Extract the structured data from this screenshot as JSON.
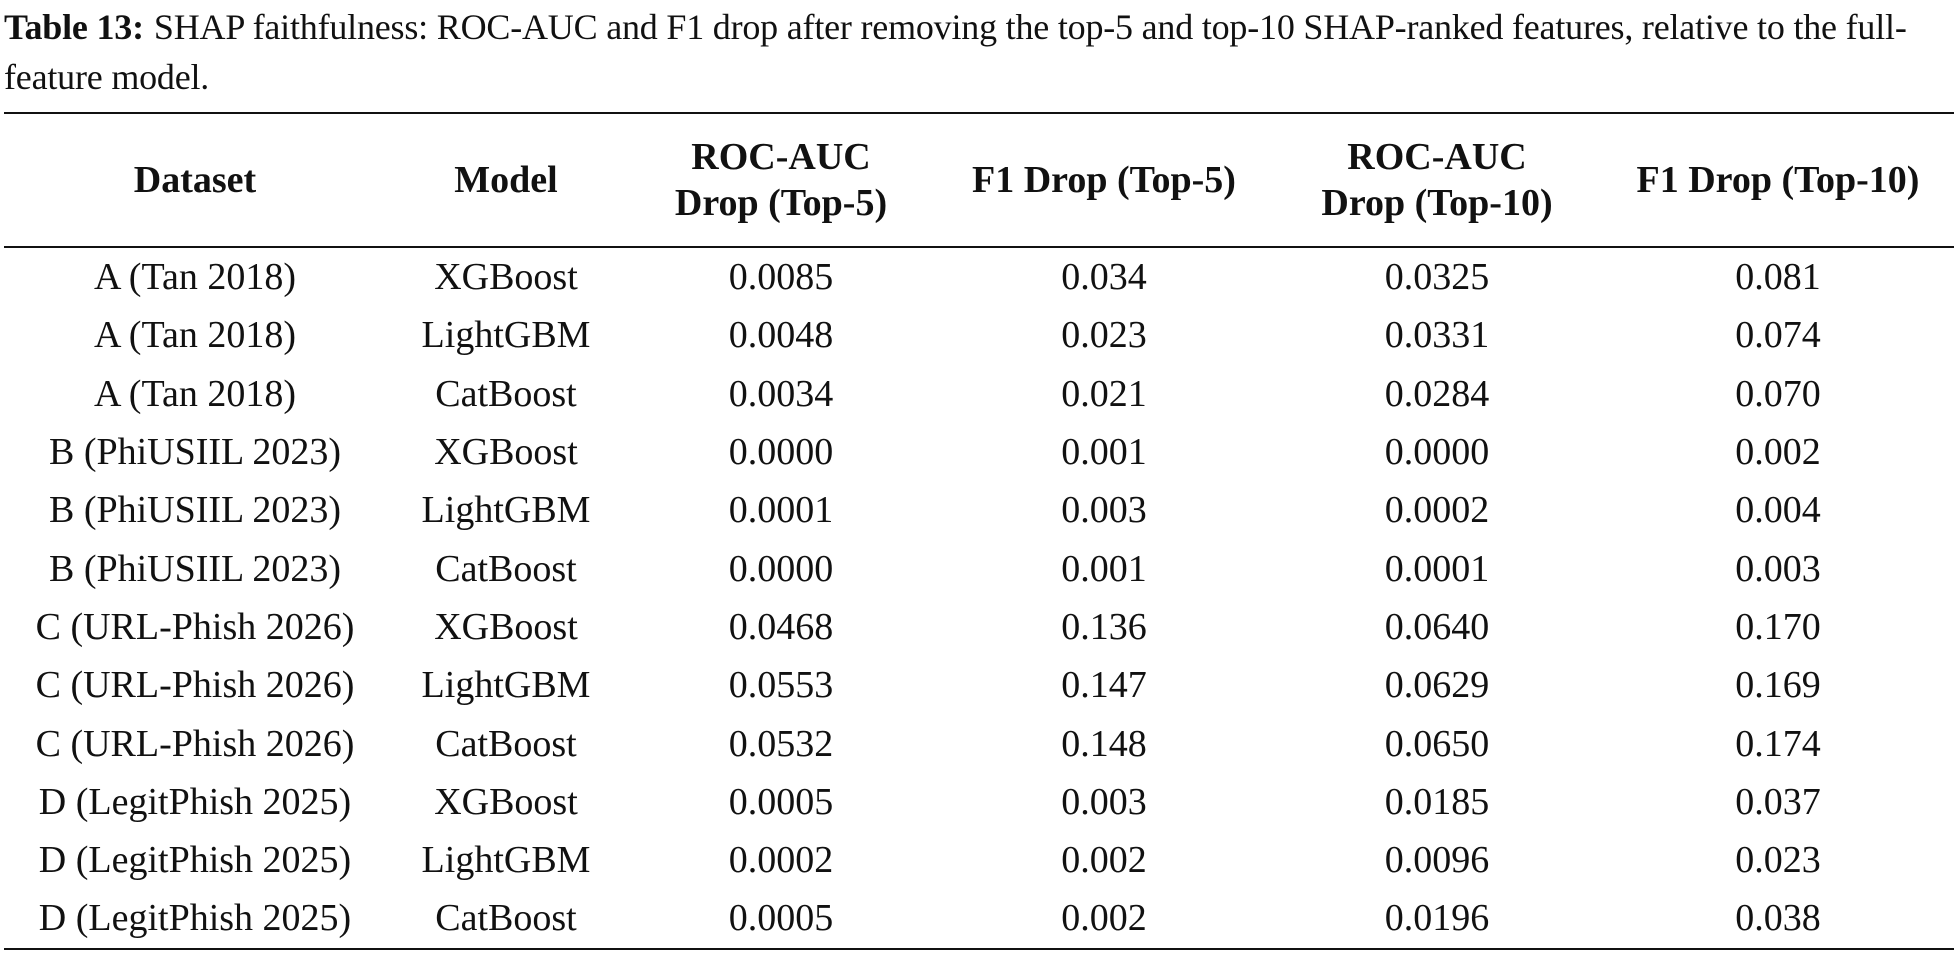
{
  "caption": {
    "label": "Table 13:",
    "text": "SHAP faithfulness: ROC-AUC and F1 drop after removing the top-5 and top-10 SHAP-ranked features, relative to the full-feature model."
  },
  "table": {
    "headers": {
      "dataset": "Dataset",
      "model": "Model",
      "roc_auc_top5_line1": "ROC-AUC",
      "roc_auc_top5_line2": "Drop (Top-5)",
      "f1_top5": "F1 Drop (Top-5)",
      "roc_auc_top10_line1": "ROC-AUC",
      "roc_auc_top10_line2": "Drop (Top-10)",
      "f1_top10": "F1 Drop (Top-10)"
    },
    "rows": [
      [
        "A (Tan 2018)",
        "XGBoost",
        "0.0085",
        "0.034",
        "0.0325",
        "0.081"
      ],
      [
        "A (Tan 2018)",
        "LightGBM",
        "0.0048",
        "0.023",
        "0.0331",
        "0.074"
      ],
      [
        "A (Tan 2018)",
        "CatBoost",
        "0.0034",
        "0.021",
        "0.0284",
        "0.070"
      ],
      [
        "B (PhiUSIIL 2023)",
        "XGBoost",
        "0.0000",
        "0.001",
        "0.0000",
        "0.002"
      ],
      [
        "B (PhiUSIIL 2023)",
        "LightGBM",
        "0.0001",
        "0.003",
        "0.0002",
        "0.004"
      ],
      [
        "B (PhiUSIIL 2023)",
        "CatBoost",
        "0.0000",
        "0.001",
        "0.0001",
        "0.003"
      ],
      [
        "C (URL-Phish 2026)",
        "XGBoost",
        "0.0468",
        "0.136",
        "0.0640",
        "0.170"
      ],
      [
        "C (URL-Phish 2026)",
        "LightGBM",
        "0.0553",
        "0.147",
        "0.0629",
        "0.169"
      ],
      [
        "C (URL-Phish 2026)",
        "CatBoost",
        "0.0532",
        "0.148",
        "0.0650",
        "0.174"
      ],
      [
        "D (LegitPhish 2025)",
        "XGBoost",
        "0.0005",
        "0.003",
        "0.0185",
        "0.037"
      ],
      [
        "D (LegitPhish 2025)",
        "LightGBM",
        "0.0002",
        "0.002",
        "0.0096",
        "0.023"
      ],
      [
        "D (LegitPhish 2025)",
        "CatBoost",
        "0.0005",
        "0.002",
        "0.0196",
        "0.038"
      ]
    ]
  }
}
